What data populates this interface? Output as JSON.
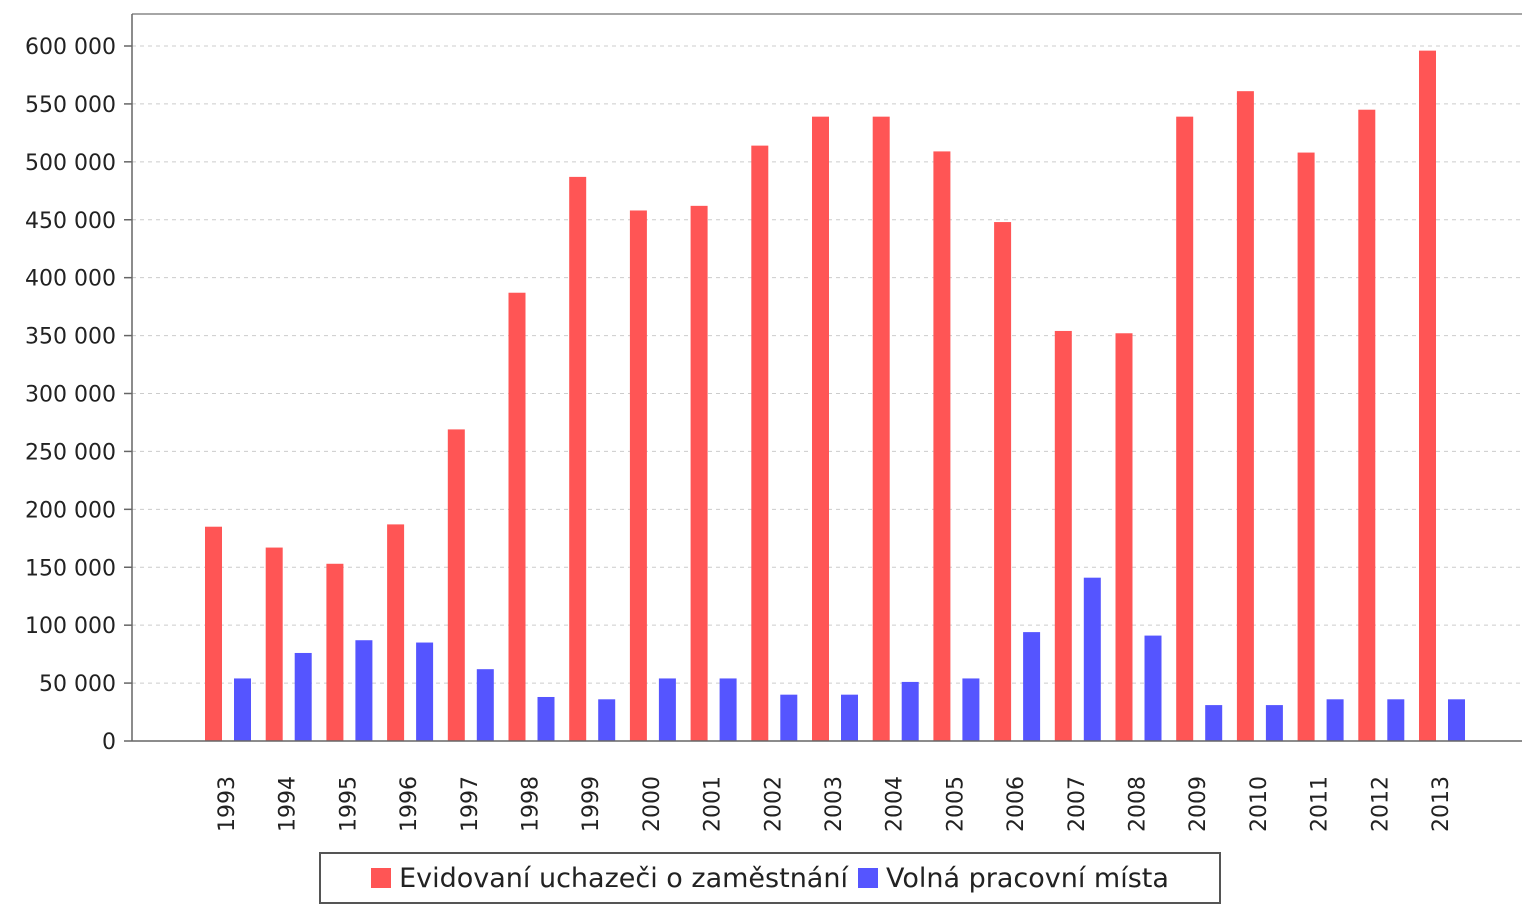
{
  "chart_data": {
    "type": "bar",
    "categories": [
      "1993",
      "1994",
      "1995",
      "1996",
      "1997",
      "1998",
      "1999",
      "2000",
      "2001",
      "2002",
      "2003",
      "2004",
      "2005",
      "2006",
      "2007",
      "2008",
      "2009",
      "2010",
      "2011",
      "2012",
      "2013"
    ],
    "series": [
      {
        "name": "Evidovaní uchazeči o zaměstnání",
        "color": "#ff5555",
        "values": [
          185000,
          167000,
          153000,
          187000,
          269000,
          387000,
          487000,
          458000,
          462000,
          514000,
          539000,
          539000,
          509000,
          448000,
          354000,
          352000,
          539000,
          561000,
          508000,
          545000,
          596000
        ]
      },
      {
        "name": "Volná pracovní místa",
        "color": "#5555ff",
        "values": [
          54000,
          76000,
          87000,
          85000,
          62000,
          38000,
          36000,
          54000,
          54000,
          40000,
          40000,
          51000,
          54000,
          94000,
          141000,
          91000,
          31000,
          31000,
          36000,
          36000,
          36000
        ]
      }
    ],
    "ylim": [
      0,
      600000
    ],
    "yticks": [
      0,
      50000,
      100000,
      150000,
      200000,
      250000,
      300000,
      350000,
      400000,
      450000,
      500000,
      550000,
      600000
    ],
    "ytick_labels": [
      "0",
      "50 000",
      "100 000",
      "150 000",
      "200 000",
      "250 000",
      "300 000",
      "350 000",
      "400 000",
      "450 000",
      "500 000",
      "550 000",
      "600 000"
    ],
    "grid": true,
    "legend_position": "bottom"
  }
}
